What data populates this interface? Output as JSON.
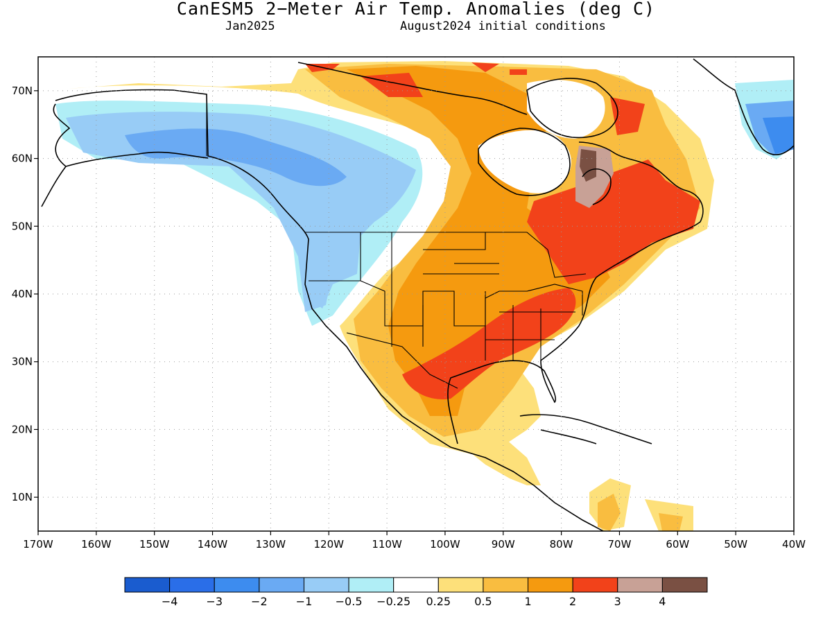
{
  "header": {
    "title": "CanESM5 2−Meter Air Temp. Anomalies (deg C)",
    "subtitle_left": "Jan2025",
    "subtitle_right": "August2024 initial conditions"
  },
  "map": {
    "lon_range": [
      -170,
      -40
    ],
    "lat_range": [
      5,
      75
    ],
    "lon_labels": [
      "170W",
      "160W",
      "150W",
      "140W",
      "130W",
      "120W",
      "110W",
      "100W",
      "90W",
      "80W",
      "70W",
      "60W",
      "50W",
      "40W"
    ],
    "lat_labels": [
      "10N",
      "20N",
      "30N",
      "40N",
      "50N",
      "60N",
      "70N"
    ],
    "grid": true
  },
  "colorbar": {
    "colors": [
      "#1a5ccf",
      "#2a6ee8",
      "#3d8cef",
      "#6aaaf3",
      "#98ccf6",
      "#b0eef6",
      "#ffffff",
      "#fde07a",
      "#f9bd40",
      "#f59a0f",
      "#f2421a",
      "#c8a196",
      "#7a5043"
    ],
    "labels": [
      "−4",
      "−3",
      "−2",
      "−1",
      "−0.5",
      "−0.25",
      "0.25",
      "0.5",
      "1",
      "2",
      "3",
      "4"
    ]
  },
  "anomaly_regions": [
    {
      "name": "alaska-yukon-cool",
      "level": -0.5
    },
    {
      "name": "alaska-bc-cool",
      "level": -1
    },
    {
      "name": "us-northwest-cool",
      "level": -1
    },
    {
      "name": "canada-prairies-warm",
      "level": 0.5
    },
    {
      "name": "central-canada-warm",
      "level": 1
    },
    {
      "name": "central-us-warm",
      "level": 1
    },
    {
      "name": "mexico-warm",
      "level": 0.5
    },
    {
      "name": "plains-warm",
      "level": 2
    },
    {
      "name": "southeast-us-warm",
      "level": 3
    },
    {
      "name": "eastern-canada-warm",
      "level": 3
    },
    {
      "name": "labrador-warm",
      "level": 4
    },
    {
      "name": "greenland-cool",
      "level": -2
    }
  ]
}
